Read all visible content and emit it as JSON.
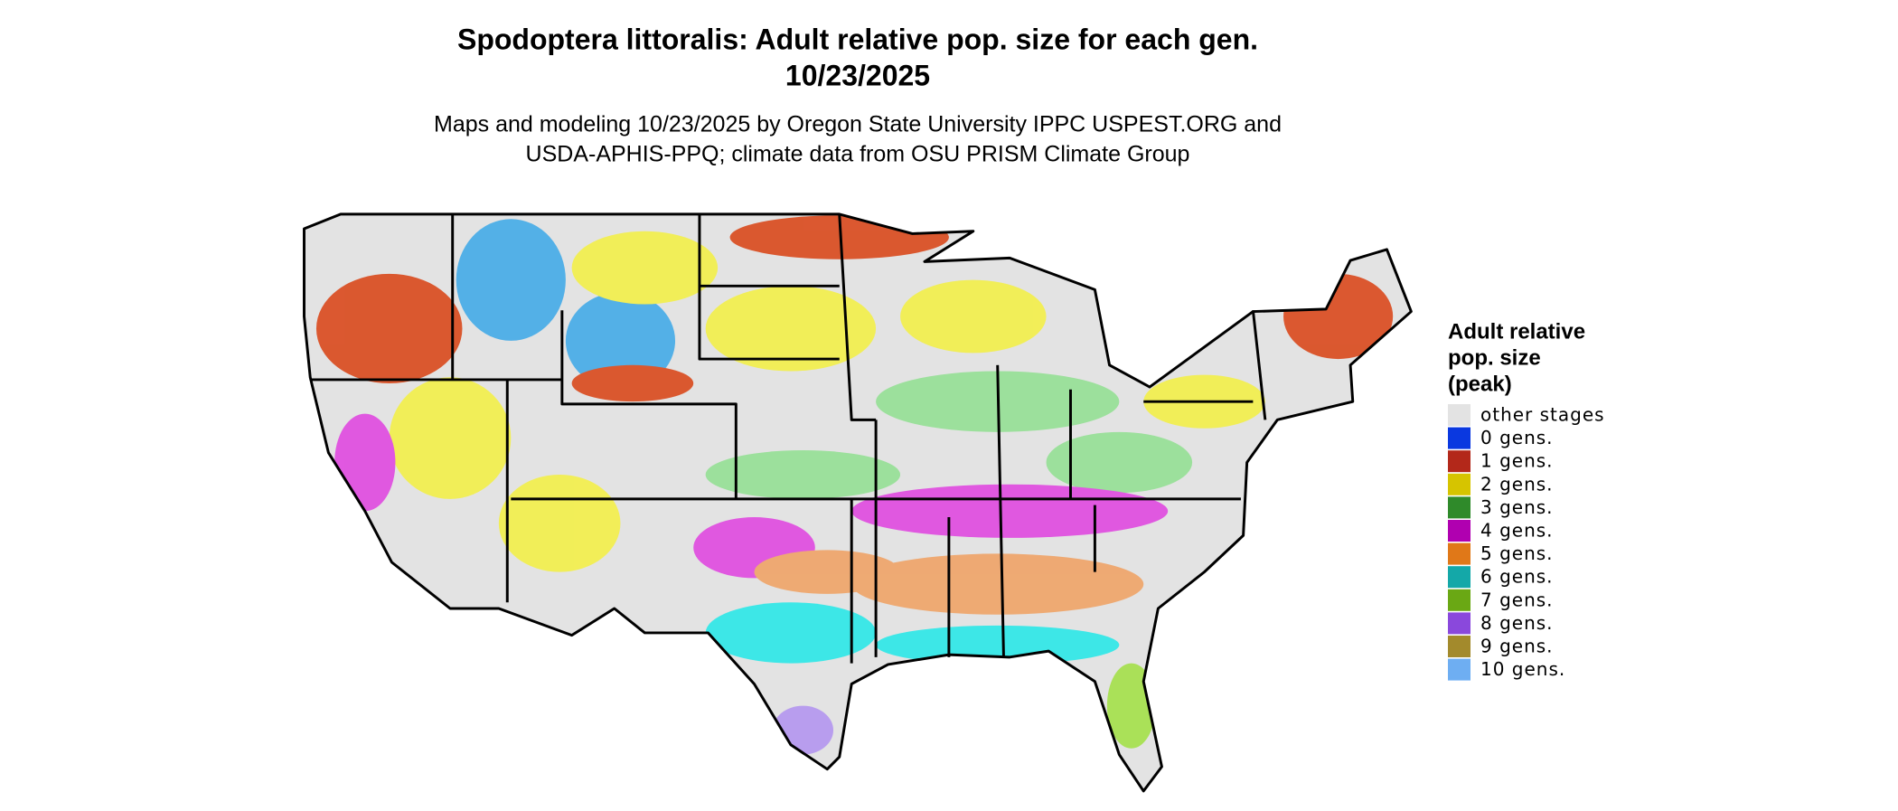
{
  "header": {
    "title_lines": [
      "Spodoptera littoralis: Adult relative pop. size for each gen.",
      "10/23/2025"
    ],
    "subtitle_lines": [
      "Maps and modeling 10/23/2025 by Oregon State University IPPC USPEST.ORG and",
      "USDA-APHIS-PPQ; climate data from OSU PRISM Climate Group"
    ]
  },
  "legend": {
    "title_lines": [
      "Adult relative",
      "pop. size",
      "(peak)"
    ],
    "items": [
      {
        "label": "other stages",
        "color": "#e3e3e3"
      },
      {
        "label": "0 gens.",
        "color": "#0a38e0"
      },
      {
        "label": "1 gens.",
        "color": "#b3281a"
      },
      {
        "label": "2 gens.",
        "color": "#d6c400"
      },
      {
        "label": "3 gens.",
        "color": "#2f8a2a"
      },
      {
        "label": "4 gens.",
        "color": "#b000b0"
      },
      {
        "label": "5 gens.",
        "color": "#e07818"
      },
      {
        "label": "6 gens.",
        "color": "#14a8a8"
      },
      {
        "label": "7 gens.",
        "color": "#6aa814"
      },
      {
        "label": "8 gens.",
        "color": "#8a48dc"
      },
      {
        "label": "9 gens.",
        "color": "#a38a2c"
      },
      {
        "label": "10 gens.",
        "color": "#6eaef2"
      }
    ]
  }
}
